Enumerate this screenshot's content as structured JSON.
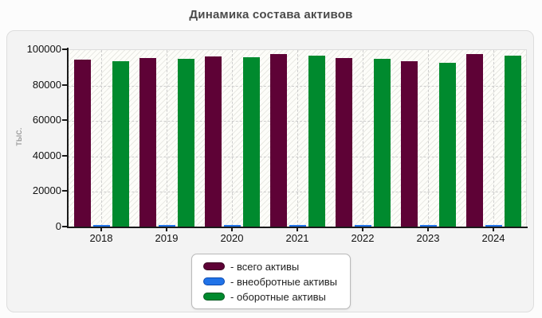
{
  "page": {
    "title": "Динамика состава активов"
  },
  "y_axis": {
    "label": "тыс."
  },
  "legend": {
    "items": [
      {
        "label": "- всего активы",
        "color": "#5e0236",
        "border": "#38011f"
      },
      {
        "label": "- внеобротные активы",
        "color": "#2173e8",
        "border": "#0b4ab0"
      },
      {
        "label": "- оборотные активы",
        "color": "#008a2e",
        "border": "#00581d"
      }
    ]
  },
  "chart_data": {
    "type": "bar",
    "title": "Динамика состава активов",
    "xlabel": "",
    "ylabel": "тыс.",
    "ylim": [
      0,
      100000
    ],
    "y_ticks": [
      0,
      20000,
      40000,
      60000,
      80000,
      100000
    ],
    "grid": true,
    "legend_position": "bottom",
    "categories": [
      "2018",
      "2019",
      "2020",
      "2021",
      "2022",
      "2023",
      "2024"
    ],
    "series": [
      {
        "name": "- всего активы",
        "color": "#5e0236",
        "values": [
          94000,
          95100,
          96100,
          97200,
          95100,
          93100,
          97200
        ]
      },
      {
        "name": "- внеобротные активы",
        "color": "#2173e8",
        "values": [
          600,
          600,
          600,
          600,
          600,
          700,
          600
        ]
      },
      {
        "name": "- оборотные активы",
        "color": "#008a2e",
        "values": [
          93400,
          94500,
          95500,
          96600,
          94500,
          92400,
          96600
        ]
      }
    ]
  }
}
